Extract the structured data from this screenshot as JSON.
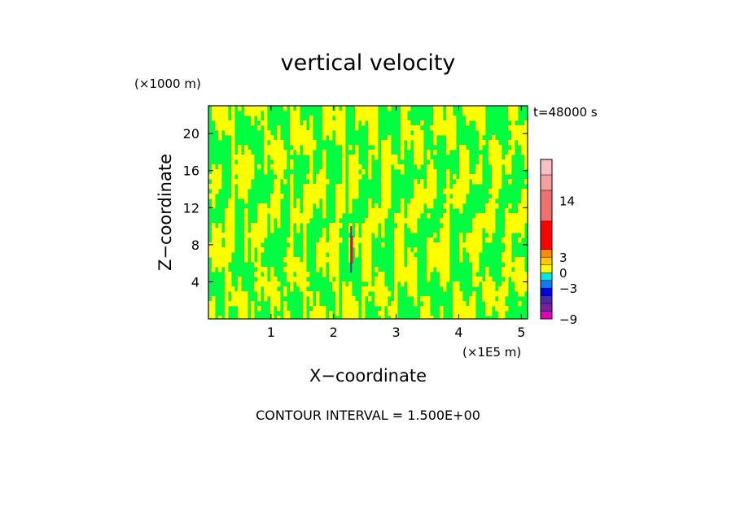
{
  "chart_data": {
    "type": "heatmap",
    "title": "vertical velocity",
    "time_label": "t=48000 s",
    "xlabel": "X−coordinate",
    "ylabel": "Z−coordinate",
    "x_scale_label": "(×1E5 m)",
    "y_scale_label": "(×1000 m)",
    "xlim": [
      0,
      5.1
    ],
    "ylim": [
      0,
      23
    ],
    "x_ticks": [
      1,
      2,
      3,
      4,
      5
    ],
    "y_ticks": [
      4,
      8,
      12,
      16,
      20
    ],
    "contour_interval_label": "CONTOUR INTERVAL = 1.500E+00",
    "contour_interval": 1.5,
    "field_description_levels": {
      "dominant_low": -1.5,
      "dominant_high": 1.5
    },
    "colorbar": {
      "tick_labels": [
        "14",
        "3",
        "0",
        "−3",
        "−9"
      ],
      "tick_values": [
        14,
        3,
        0,
        -3,
        -9
      ],
      "bands": [
        {
          "from": -9,
          "to": -7.5,
          "color": "#e600b4"
        },
        {
          "from": -7.5,
          "to": -6,
          "color": "#7a1fa8"
        },
        {
          "from": -6,
          "to": -4.5,
          "color": "#4b2aa8"
        },
        {
          "from": -4.5,
          "to": -3,
          "color": "#0000e6"
        },
        {
          "from": -3,
          "to": -1.5,
          "color": "#1478ff"
        },
        {
          "from": -1.5,
          "to": 0,
          "color": "#00e6e6"
        },
        {
          "from": 0,
          "to": 1.5,
          "color": "#ffff00"
        },
        {
          "from": 1.5,
          "to": 3,
          "color": "#ffc800"
        },
        {
          "from": 3,
          "to": 4.5,
          "color": "#ff8c00"
        },
        {
          "from": 4.5,
          "to": 10,
          "color": "#ff0000"
        },
        {
          "from": 10,
          "to": 16,
          "color": "#f07070"
        },
        {
          "from": 16,
          "to": 19,
          "color": "#f5a0a0"
        },
        {
          "from": 19,
          "to": 22,
          "color": "#f8c0c0"
        }
      ]
    },
    "colors": {
      "neg_small": "#00ff40",
      "pos_small": "#ffff00",
      "feature_purple": "#7a1fa8",
      "feature_red": "#e02020"
    },
    "feature": {
      "x": 2.28,
      "z_from": 5,
      "z_to": 10
    }
  }
}
